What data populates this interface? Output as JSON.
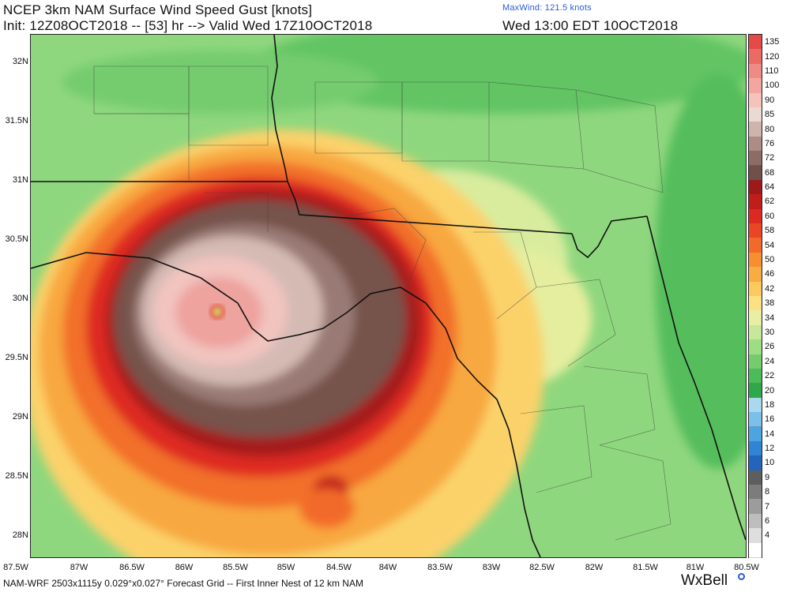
{
  "header": {
    "title": "NCEP 3km NAM Surface Wind Speed Gust [knots]",
    "init_line": "Init: 12Z08OCT2018 -- [53] hr --> Valid Wed 17Z10OCT2018",
    "max_wind": "MaxWind: 121.5 knots",
    "valid_local": "Wed 13:00 EDT 10OCT2018"
  },
  "footer": {
    "grid_info": "NAM-WRF 2503x1115y 0.029°x0.027° Forecast Grid -- First Inner Nest of 12 km NAM",
    "brand": "WxBell"
  },
  "map": {
    "lat_labels": [
      "32N",
      "31.5N",
      "31N",
      "30.5N",
      "30N",
      "29.5N",
      "29N",
      "28.5N",
      "28N"
    ],
    "lon_labels": [
      "87.5W",
      "87W",
      "86.5W",
      "86W",
      "85.5W",
      "85W",
      "84.5W",
      "84W",
      "83.5W",
      "83W",
      "82.5W",
      "82W",
      "81.5W",
      "81W",
      "80.5W"
    ]
  },
  "legend": {
    "units": "knots",
    "levels": [
      {
        "label": "135",
        "color": "#e34a48"
      },
      {
        "label": "120",
        "color": "#ea6a66"
      },
      {
        "label": "110",
        "color": "#ef8b86"
      },
      {
        "label": "100",
        "color": "#f3a6a0"
      },
      {
        "label": "90",
        "color": "#f6c2bc"
      },
      {
        "label": "85",
        "color": "#ebd9d4"
      },
      {
        "label": "80",
        "color": "#cfb3ad"
      },
      {
        "label": "76",
        "color": "#ad8c86"
      },
      {
        "label": "72",
        "color": "#8e6c66"
      },
      {
        "label": "68",
        "color": "#70504a"
      },
      {
        "label": "64",
        "color": "#9e1a1a"
      },
      {
        "label": "62",
        "color": "#c21d1d"
      },
      {
        "label": "60",
        "color": "#dd2a20"
      },
      {
        "label": "58",
        "color": "#ea4626"
      },
      {
        "label": "54",
        "color": "#f26a2a"
      },
      {
        "label": "50",
        "color": "#f58f32"
      },
      {
        "label": "46",
        "color": "#f8ad43"
      },
      {
        "label": "42",
        "color": "#fbc95e"
      },
      {
        "label": "38",
        "color": "#fde081"
      },
      {
        "label": "34",
        "color": "#e8eea4"
      },
      {
        "label": "30",
        "color": "#c7e89a"
      },
      {
        "label": "26",
        "color": "#9fdc86"
      },
      {
        "label": "24",
        "color": "#74cc6e"
      },
      {
        "label": "22",
        "color": "#4cbb59"
      },
      {
        "label": "20",
        "color": "#2ea84a"
      },
      {
        "label": "18",
        "color": "#a9d8ef"
      },
      {
        "label": "16",
        "color": "#7cc0e9"
      },
      {
        "label": "14",
        "color": "#4ca4e0"
      },
      {
        "label": "12",
        "color": "#2f84d3"
      },
      {
        "label": "10",
        "color": "#2364bd"
      },
      {
        "label": "9",
        "color": "#5e5e5e"
      },
      {
        "label": "8",
        "color": "#7c7c7c"
      },
      {
        "label": "7",
        "color": "#9c9c9c"
      },
      {
        "label": "6",
        "color": "#bdbdbd"
      },
      {
        "label": "4",
        "color": "#dedede"
      },
      {
        "label": "",
        "color": "#ffffff"
      }
    ]
  }
}
